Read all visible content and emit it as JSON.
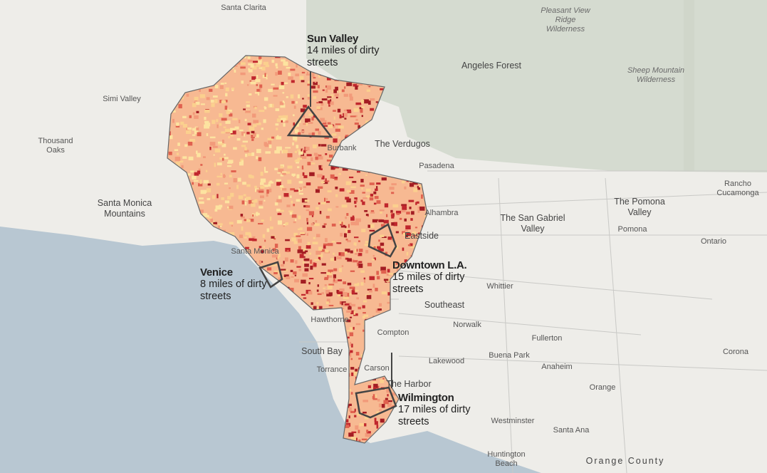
{
  "callouts": [
    {
      "title": "Sun Valley",
      "text": "14 miles of dirty streets"
    },
    {
      "title": "Downtown L.A.",
      "text": "15 miles of dirty streets"
    },
    {
      "title": "Venice",
      "text": "8 miles of dirty streets"
    },
    {
      "title": "Wilmington",
      "text": "17 miles of dirty streets"
    }
  ],
  "places": [
    "Santa Clarita",
    "Pleasant View Ridge Wilderness",
    "Angeles Forest",
    "Sheep Mountain Wilderness",
    "Simi Valley",
    "Thousand Oaks",
    "Burbank",
    "The Verdugos",
    "Pasadena",
    "Santa Monica Mountains",
    "Rancho Cucamonga",
    "The Pomona Valley",
    "Pomona",
    "Alhambra",
    "Eastside",
    "The San Gabriel Valley",
    "Ontario",
    "Santa Monica",
    "Whittier",
    "Southeast",
    "Hawthorne",
    "Compton",
    "Norwalk",
    "Fullerton",
    "South Bay",
    "Lakewood",
    "Buena Park",
    "Torrance",
    "Carson",
    "Anaheim",
    "Corona",
    "The Harbor",
    "Orange",
    "Westminster",
    "Santa Ana",
    "Huntington Beach",
    "Orange County"
  ]
}
